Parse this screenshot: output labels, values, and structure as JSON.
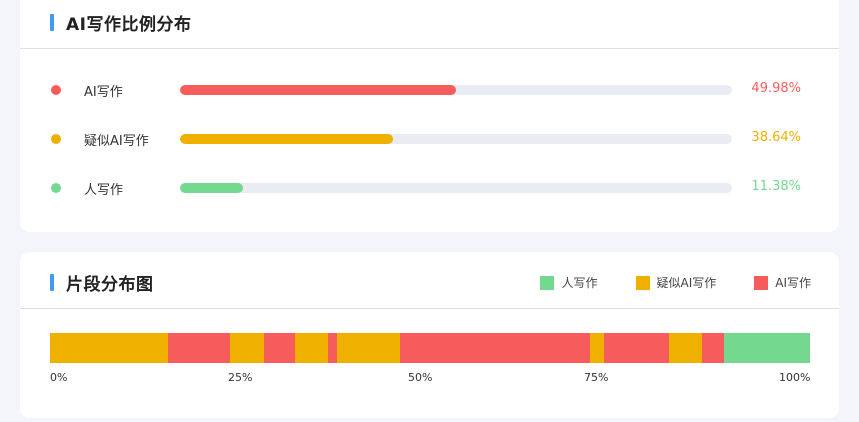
{
  "colors": {
    "ai": "#f75c5c",
    "suspected": "#f0b000",
    "human": "#74d98f",
    "track": "#e9ecf2",
    "title_accent": "#3c9cf5"
  },
  "ratio_card": {
    "title": "AI写作比例分布",
    "rows": [
      {
        "key": "ai",
        "label": "AI写作",
        "percent_text": "49.98%",
        "value": 49.98,
        "color": "#f75c5c"
      },
      {
        "key": "suspected",
        "label": "疑似AI写作",
        "percent_text": "38.64%",
        "value": 38.64,
        "color": "#f0b000"
      },
      {
        "key": "human",
        "label": "人写作",
        "percent_text": "11.38%",
        "value": 11.38,
        "color": "#74d98f"
      }
    ]
  },
  "segment_card": {
    "title": "片段分布图",
    "legend": [
      {
        "key": "human",
        "label": "人写作",
        "color": "#74d98f"
      },
      {
        "key": "suspected",
        "label": "疑似AI写作",
        "color": "#f0b000"
      },
      {
        "key": "ai",
        "label": "AI写作",
        "color": "#f75c5c"
      }
    ],
    "axis_ticks": [
      "0%",
      "25%",
      "50%",
      "75%",
      "100%"
    ],
    "segments": [
      {
        "type": "suspected",
        "from": 0,
        "to": 15.5
      },
      {
        "type": "ai",
        "from": 15.5,
        "to": 23.7
      },
      {
        "type": "suspected",
        "from": 23.7,
        "to": 28.2
      },
      {
        "type": "ai",
        "from": 28.2,
        "to": 32.2
      },
      {
        "type": "suspected",
        "from": 32.2,
        "to": 36.6
      },
      {
        "type": "ai",
        "from": 36.6,
        "to": 37.8
      },
      {
        "type": "suspected",
        "from": 37.8,
        "to": 46.1
      },
      {
        "type": "ai",
        "from": 46.1,
        "to": 71.0
      },
      {
        "type": "suspected",
        "from": 71.0,
        "to": 72.9
      },
      {
        "type": "ai",
        "from": 72.9,
        "to": 81.4
      },
      {
        "type": "suspected",
        "from": 81.4,
        "to": 85.8
      },
      {
        "type": "ai",
        "from": 85.8,
        "to": 88.7
      },
      {
        "type": "human",
        "from": 88.7,
        "to": 100
      }
    ]
  }
}
